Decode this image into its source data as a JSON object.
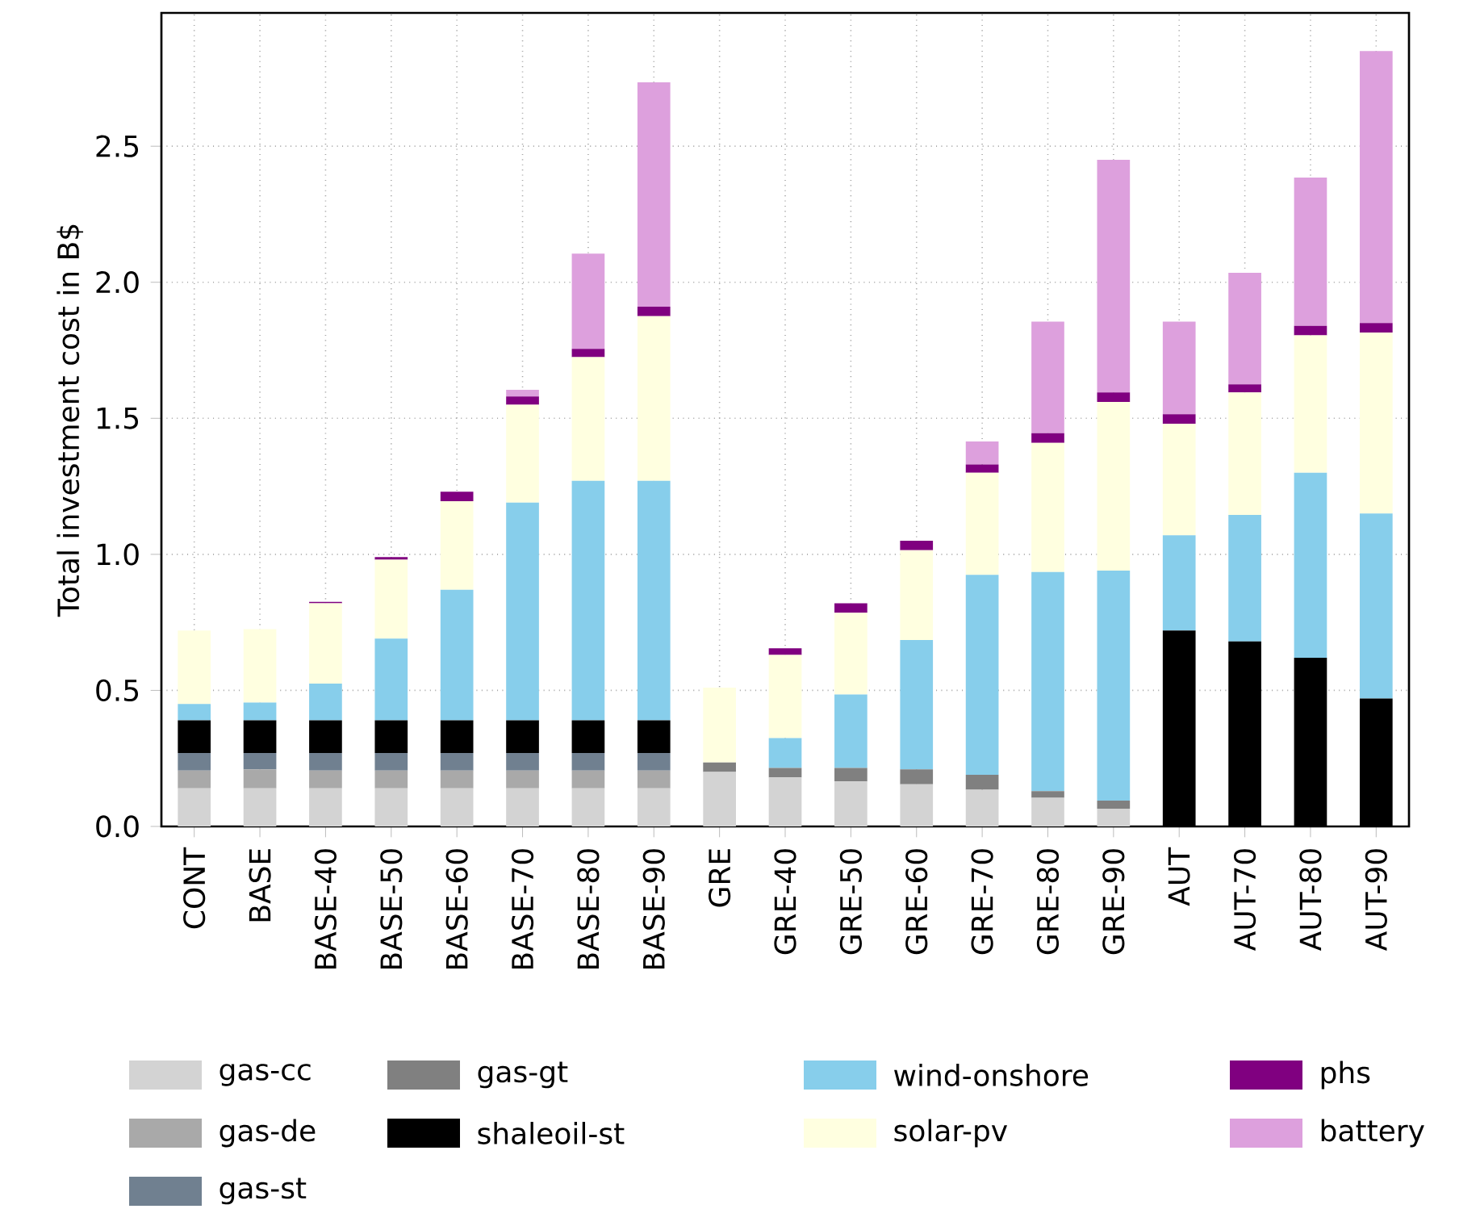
{
  "chart_data": {
    "type": "bar",
    "stacked": true,
    "ylabel": "Total investment cost in B$",
    "categories": [
      "CONT",
      "BASE",
      "BASE-40",
      "BASE-50",
      "BASE-60",
      "BASE-70",
      "BASE-80",
      "BASE-90",
      "GRE",
      "GRE-40",
      "GRE-50",
      "GRE-60",
      "GRE-70",
      "GRE-80",
      "GRE-90",
      "AUT",
      "AUT-70",
      "AUT-80",
      "AUT-90"
    ],
    "series": [
      {
        "name": "gas-cc",
        "color": "#d3d3d3",
        "values": [
          0.14,
          0.14,
          0.14,
          0.14,
          0.14,
          0.14,
          0.14,
          0.14,
          0.2,
          0.18,
          0.165,
          0.155,
          0.135,
          0.105,
          0.065,
          0,
          0,
          0,
          0
        ]
      },
      {
        "name": "gas-de",
        "color": "#a9a9a9",
        "values": [
          0.065,
          0.07,
          0.065,
          0.065,
          0.065,
          0.065,
          0.065,
          0.065,
          0,
          0,
          0,
          0,
          0,
          0,
          0,
          0,
          0,
          0,
          0
        ]
      },
      {
        "name": "gas-st",
        "color": "#708090",
        "values": [
          0.065,
          0.06,
          0.065,
          0.065,
          0.065,
          0.065,
          0.065,
          0.065,
          0,
          0,
          0,
          0,
          0,
          0,
          0,
          0,
          0,
          0,
          0
        ]
      },
      {
        "name": "gas-gt",
        "color": "#808080",
        "values": [
          0,
          0,
          0,
          0,
          0,
          0,
          0,
          0,
          0.035,
          0.035,
          0.05,
          0.055,
          0.055,
          0.025,
          0.03,
          0,
          0,
          0,
          0
        ]
      },
      {
        "name": "shaleoil-st",
        "color": "#000000",
        "values": [
          0.12,
          0.12,
          0.12,
          0.12,
          0.12,
          0.12,
          0.12,
          0.12,
          0,
          0,
          0,
          0,
          0,
          0,
          0,
          0.72,
          0.68,
          0.62,
          0.47
        ]
      },
      {
        "name": "wind-onshore",
        "color": "#87ceeb",
        "values": [
          0.06,
          0.065,
          0.135,
          0.3,
          0.48,
          0.8,
          0.88,
          0.88,
          0,
          0.11,
          0.27,
          0.475,
          0.735,
          0.805,
          0.845,
          0.35,
          0.465,
          0.68,
          0.68
        ]
      },
      {
        "name": "solar-pv",
        "color": "#ffffe0",
        "values": [
          0.27,
          0.27,
          0.295,
          0.29,
          0.325,
          0.36,
          0.455,
          0.605,
          0.275,
          0.305,
          0.3,
          0.33,
          0.375,
          0.475,
          0.62,
          0.41,
          0.45,
          0.505,
          0.665
        ]
      },
      {
        "name": "phs",
        "color": "#800080",
        "values": [
          0,
          0,
          0.005,
          0.01,
          0.035,
          0.03,
          0.03,
          0.035,
          0,
          0.025,
          0.035,
          0.035,
          0.03,
          0.035,
          0.035,
          0.035,
          0.03,
          0.035,
          0.035
        ]
      },
      {
        "name": "battery",
        "color": "#dda0dd",
        "values": [
          0,
          0,
          0,
          0,
          0,
          0.025,
          0.35,
          0.825,
          0,
          0,
          0,
          0,
          0.085,
          0.41,
          0.855,
          0.34,
          0.41,
          0.545,
          1.0
        ]
      }
    ],
    "ylim": [
      0,
      2.99
    ],
    "yticks": [
      {
        "value": 0,
        "label": "0.0"
      },
      0.5,
      {
        "value": 1,
        "label": "1.0"
      },
      1.5,
      {
        "value": 2,
        "label": "2.0"
      },
      2.5
    ],
    "grid": true,
    "legend": "bottom"
  }
}
